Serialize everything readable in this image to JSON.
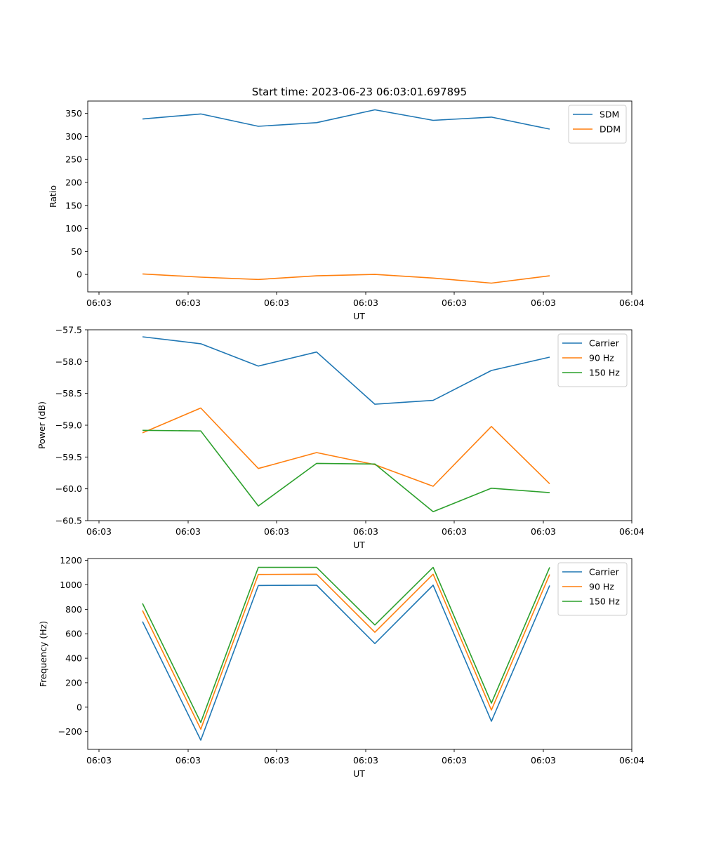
{
  "title": "Start time: 2023-06-23 06:03:01.697895",
  "colors": {
    "blue": "#1f77b4",
    "orange": "#ff7f0e",
    "green": "#2ca02c"
  },
  "chart_data": [
    {
      "type": "line",
      "xlabel": "UT",
      "ylabel": "Ratio",
      "x_tick_labels": [
        "06:03",
        "06:03",
        "06:03",
        "06:03",
        "06:03",
        "06:03",
        "06:04"
      ],
      "yticks": [
        0,
        50,
        100,
        150,
        200,
        250,
        300,
        350
      ],
      "ylim": [
        -38,
        377
      ],
      "grid": false,
      "legend_position": "top-right",
      "series": [
        {
          "name": "SDM",
          "color": "#1f77b4",
          "values": [
            338,
            349,
            322,
            330,
            358,
            335,
            342,
            316
          ]
        },
        {
          "name": "DDM",
          "color": "#ff7f0e",
          "values": [
            1,
            -6,
            -11,
            -3,
            0,
            -8,
            -19,
            -3
          ]
        }
      ]
    },
    {
      "type": "line",
      "xlabel": "UT",
      "ylabel": "Power (dB)",
      "x_tick_labels": [
        "06:03",
        "06:03",
        "06:03",
        "06:03",
        "06:03",
        "06:03",
        "06:04"
      ],
      "yticks": [
        -60.5,
        -60.0,
        -59.5,
        -59.0,
        -58.5,
        -58.0,
        -57.5
      ],
      "ytick_labels": [
        "−60.5",
        "−60.0",
        "−59.5",
        "−59.0",
        "−58.5",
        "−58.0",
        "−57.5"
      ],
      "ylim": [
        -60.5,
        -57.5
      ],
      "grid": false,
      "legend_position": "top-right",
      "series": [
        {
          "name": "Carrier",
          "color": "#1f77b4",
          "values": [
            -57.61,
            -57.72,
            -58.07,
            -57.85,
            -58.67,
            -58.61,
            -58.14,
            -57.93
          ]
        },
        {
          "name": "90 Hz",
          "color": "#ff7f0e",
          "values": [
            -59.12,
            -58.73,
            -59.68,
            -59.43,
            -59.62,
            -59.96,
            -59.02,
            -59.92
          ]
        },
        {
          "name": "150 Hz",
          "color": "#2ca02c",
          "values": [
            -59.08,
            -59.09,
            -60.27,
            -59.6,
            -59.61,
            -60.36,
            -59.99,
            -60.06
          ]
        }
      ]
    },
    {
      "type": "line",
      "xlabel": "UT",
      "ylabel": "Frequency (Hz)",
      "x_tick_labels": [
        "06:03",
        "06:03",
        "06:03",
        "06:03",
        "06:03",
        "06:03",
        "06:04"
      ],
      "yticks": [
        -200,
        0,
        200,
        400,
        600,
        800,
        1000,
        1200
      ],
      "ytick_labels": [
        "−200",
        "0",
        "200",
        "400",
        "600",
        "800",
        "1000",
        "1200"
      ],
      "ylim": [
        -345,
        1215
      ],
      "grid": false,
      "legend_position": "top-right",
      "series": [
        {
          "name": "Carrier",
          "color": "#1f77b4",
          "values": [
            700,
            -270,
            995,
            997,
            520,
            997,
            -115,
            995
          ]
        },
        {
          "name": "90 Hz",
          "color": "#ff7f0e",
          "values": [
            790,
            -180,
            1085,
            1087,
            612,
            1087,
            -23,
            1085
          ]
        },
        {
          "name": "150 Hz",
          "color": "#2ca02c",
          "values": [
            848,
            -125,
            1143,
            1143,
            672,
            1143,
            33,
            1143
          ]
        }
      ]
    }
  ]
}
